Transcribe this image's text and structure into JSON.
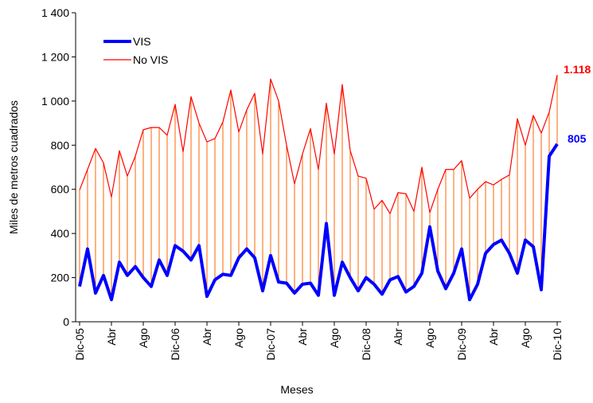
{
  "chart_data": {
    "type": "line",
    "x_label": "Meses",
    "y_label": "Miles de metros cuadrados",
    "categories": [
      "Dic-05",
      null,
      null,
      null,
      "Abr",
      null,
      null,
      null,
      "Ago",
      null,
      null,
      null,
      "Dic-06",
      null,
      null,
      null,
      "Abr",
      null,
      null,
      null,
      "Ago",
      null,
      null,
      null,
      "Dic-07",
      null,
      null,
      null,
      "Abr",
      null,
      null,
      null,
      "Ago",
      null,
      null,
      null,
      "Dic-08",
      null,
      null,
      null,
      "Abr",
      null,
      null,
      null,
      "Ago",
      null,
      null,
      null,
      "Dic-09",
      null,
      null,
      null,
      "Abr",
      null,
      null,
      null,
      "Ago",
      null,
      null,
      null,
      "Dic-10"
    ],
    "series": [
      {
        "name": "VIS",
        "color": "#0000ff",
        "values": [
          160,
          330,
          130,
          210,
          100,
          270,
          210,
          250,
          200,
          160,
          280,
          210,
          345,
          320,
          280,
          345,
          115,
          190,
          215,
          210,
          290,
          330,
          290,
          140,
          300,
          180,
          175,
          130,
          170,
          175,
          120,
          445,
          120,
          270,
          200,
          140,
          200,
          170,
          125,
          190,
          205,
          135,
          160,
          220,
          430,
          230,
          150,
          220,
          330,
          100,
          170,
          310,
          350,
          370,
          310,
          220,
          370,
          340,
          145,
          750,
          805
        ]
      },
      {
        "name": "No VIS",
        "color": "#ff0000",
        "values": [
          597,
          690,
          785,
          720,
          565,
          775,
          660,
          750,
          870,
          880,
          880,
          845,
          985,
          770,
          1020,
          900,
          815,
          830,
          905,
          1050,
          860,
          960,
          1035,
          760,
          1100,
          1000,
          800,
          625,
          760,
          875,
          690,
          990,
          760,
          1075,
          775,
          660,
          650,
          510,
          550,
          490,
          585,
          580,
          500,
          700,
          495,
          600,
          690,
          690,
          730,
          560,
          600,
          635,
          620,
          645,
          665,
          920,
          800,
          935,
          855,
          950,
          1118
        ],
        "value_labels": [
          null,
          null,
          null,
          null,
          null,
          null,
          null,
          null,
          null,
          null,
          null,
          null,
          null,
          null,
          null,
          null,
          null,
          null,
          null,
          null,
          null,
          null,
          null,
          null,
          null,
          null,
          null,
          null,
          null,
          null,
          null,
          null,
          null,
          null,
          null,
          null,
          null,
          null,
          null,
          null,
          null,
          null,
          null,
          null,
          null,
          null,
          null,
          null,
          null,
          null,
          null,
          null,
          null,
          null,
          null,
          null,
          null,
          null,
          null,
          null,
          "1.118"
        ]
      }
    ],
    "drop_line_color": "#ff6600",
    "ylim": [
      0,
      1400
    ],
    "yticks": [
      0,
      200,
      400,
      600,
      800,
      {
        "value": 1000,
        "label": "1 000"
      },
      {
        "value": 1200,
        "label": "1 200"
      },
      {
        "value": 1400,
        "label": "1 400"
      }
    ]
  }
}
